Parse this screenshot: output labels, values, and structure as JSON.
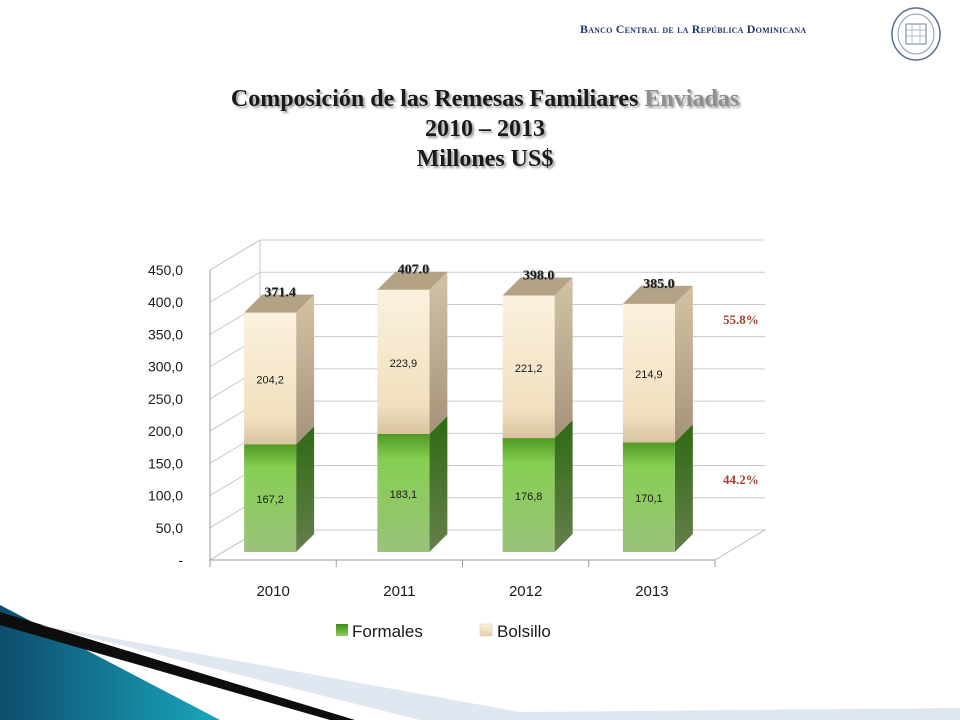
{
  "header": {
    "organization": "Banco Central de la República Dominicana"
  },
  "title": {
    "line1_main": "Composición de las Remesas Familiares",
    "line1_accent": "Enviadas",
    "line2": "2010 – 2013",
    "line3": "Millones US$"
  },
  "colors": {
    "formales": "#7dc34a",
    "bolsillo": "#f3e4c4",
    "pct_labels": "#a0402a"
  },
  "chart_data": {
    "type": "bar",
    "stacked": true,
    "three_d": true,
    "categories": [
      "2010",
      "2011",
      "2012",
      "2013"
    ],
    "series": [
      {
        "name": "Formales",
        "values": [
          167.2,
          183.1,
          176.8,
          170.1
        ],
        "labels": [
          "167,2",
          "183,1",
          "176,8",
          "170,1"
        ]
      },
      {
        "name": "Bolsillo",
        "values": [
          204.2,
          223.9,
          221.2,
          214.9
        ],
        "labels": [
          "204,2",
          "223,9",
          "221,2",
          "214,9"
        ]
      }
    ],
    "totals": [
      "371.4",
      "407.0",
      "398.0",
      "385.0"
    ],
    "ylim": [
      0,
      450
    ],
    "yticks": [
      "-",
      "50,0",
      "100,0",
      "150,0",
      "200,0",
      "250,0",
      "300,0",
      "350,0",
      "400,0",
      "450,0"
    ],
    "share_labels": {
      "bolsillo": "55.8%",
      "formales": "44.2%"
    },
    "legend_position": "bottom",
    "grid": true
  }
}
